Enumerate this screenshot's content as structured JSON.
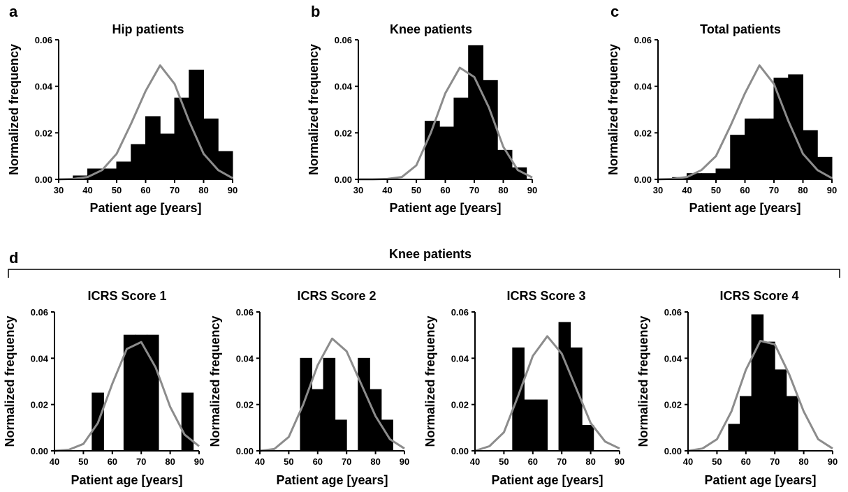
{
  "figure": {
    "group_label": "Knee patients",
    "group_letter": "d"
  },
  "chart_data": [
    {
      "id": "a",
      "letter": "a",
      "type": "bar",
      "title": "Hip patients",
      "xlabel": "Patient age [years]",
      "ylabel": "Normalized frequency",
      "xlim": [
        30,
        90
      ],
      "ylim": [
        0,
        0.06
      ],
      "xticks": [
        30,
        40,
        50,
        60,
        70,
        80,
        90
      ],
      "yticks": [
        "0.00",
        "0.02",
        "0.04",
        "0.06"
      ],
      "bin_width": 5,
      "bins": [
        {
          "start": 35,
          "value": 0.0015
        },
        {
          "start": 40,
          "value": 0.0045
        },
        {
          "start": 45,
          "value": 0.0045
        },
        {
          "start": 50,
          "value": 0.0075
        },
        {
          "start": 55,
          "value": 0.015
        },
        {
          "start": 60,
          "value": 0.027
        },
        {
          "start": 65,
          "value": 0.0195
        },
        {
          "start": 70,
          "value": 0.035
        },
        {
          "start": 75,
          "value": 0.047
        },
        {
          "start": 80,
          "value": 0.026
        },
        {
          "start": 85,
          "value": 0.012
        }
      ],
      "curve": {
        "x": [
          30,
          35,
          40,
          45,
          50,
          55,
          60,
          65,
          70,
          75,
          80,
          85,
          90
        ],
        "y": [
          0.0,
          0.0002,
          0.001,
          0.004,
          0.011,
          0.024,
          0.038,
          0.049,
          0.041,
          0.025,
          0.011,
          0.004,
          0.0005
        ]
      }
    },
    {
      "id": "b",
      "letter": "b",
      "type": "bar",
      "title": "Knee patients",
      "xlabel": "Patient age [years]",
      "ylabel": "Normalized frequency",
      "xlim": [
        30,
        90
      ],
      "ylim": [
        0,
        0.06
      ],
      "xticks": [
        30,
        40,
        50,
        60,
        70,
        80,
        90
      ],
      "yticks": [
        "0.00",
        "0.02",
        "0.04",
        "0.06"
      ],
      "bin_width": 5,
      "bins": [
        {
          "start": 53,
          "value": 0.025
        },
        {
          "start": 58,
          "value": 0.0225
        },
        {
          "start": 63,
          "value": 0.035
        },
        {
          "start": 68,
          "value": 0.0575
        },
        {
          "start": 73,
          "value": 0.0425
        },
        {
          "start": 78,
          "value": 0.0125
        },
        {
          "start": 83,
          "value": 0.005
        }
      ],
      "curve": {
        "x": [
          30,
          35,
          40,
          45,
          50,
          55,
          60,
          65,
          70,
          75,
          80,
          85,
          90
        ],
        "y": [
          0.0,
          0.0,
          0.0002,
          0.001,
          0.006,
          0.02,
          0.037,
          0.048,
          0.044,
          0.031,
          0.014,
          0.004,
          0.0008
        ]
      }
    },
    {
      "id": "c",
      "letter": "c",
      "type": "bar",
      "title": "Total patients",
      "xlabel": "Patient age [years]",
      "ylabel": "Normalized frequency",
      "xlim": [
        30,
        90
      ],
      "ylim": [
        0,
        0.06
      ],
      "xticks": [
        30,
        40,
        50,
        60,
        70,
        80,
        90
      ],
      "yticks": [
        "0.00",
        "0.02",
        "0.04",
        "0.06"
      ],
      "bin_width": 5,
      "bins": [
        {
          "start": 35,
          "value": 0.0008
        },
        {
          "start": 40,
          "value": 0.0025
        },
        {
          "start": 45,
          "value": 0.0025
        },
        {
          "start": 50,
          "value": 0.0045
        },
        {
          "start": 55,
          "value": 0.019
        },
        {
          "start": 60,
          "value": 0.026
        },
        {
          "start": 65,
          "value": 0.026
        },
        {
          "start": 70,
          "value": 0.0435
        },
        {
          "start": 75,
          "value": 0.045
        },
        {
          "start": 80,
          "value": 0.021
        },
        {
          "start": 85,
          "value": 0.0095
        }
      ],
      "curve": {
        "x": [
          30,
          35,
          40,
          45,
          50,
          55,
          60,
          65,
          70,
          75,
          80,
          85,
          90
        ],
        "y": [
          0.0,
          0.0002,
          0.001,
          0.004,
          0.01,
          0.023,
          0.037,
          0.049,
          0.041,
          0.025,
          0.011,
          0.004,
          0.0005
        ]
      }
    },
    {
      "id": "d1",
      "letter": "",
      "type": "bar",
      "title": "ICRS Score 1",
      "xlabel": "Patient age [years]",
      "ylabel": "Normalized frequency",
      "xlim": [
        40,
        90
      ],
      "ylim": [
        0,
        0.06
      ],
      "xticks": [
        40,
        50,
        60,
        70,
        80,
        90
      ],
      "yticks": [
        "0.00",
        "0.02",
        "0.04",
        "0.06"
      ],
      "bin_width": 4,
      "bins": [
        {
          "start": 53,
          "value": 0.025
        },
        {
          "start": 64,
          "value": 0.05
        },
        {
          "start": 68,
          "value": 0.05
        },
        {
          "start": 72,
          "value": 0.05
        },
        {
          "start": 84,
          "value": 0.025
        }
      ],
      "curve": {
        "x": [
          40,
          45,
          50,
          55,
          60,
          65,
          70,
          75,
          80,
          85,
          90
        ],
        "y": [
          0.0,
          0.0005,
          0.003,
          0.012,
          0.029,
          0.044,
          0.047,
          0.036,
          0.019,
          0.007,
          0.002
        ]
      }
    },
    {
      "id": "d2",
      "letter": "",
      "type": "bar",
      "title": "ICRS Score 2",
      "xlabel": "Patient age [years]",
      "ylabel": "Normalized frequency",
      "xlim": [
        40,
        90
      ],
      "ylim": [
        0,
        0.06
      ],
      "xticks": [
        40,
        50,
        60,
        70,
        80,
        90
      ],
      "yticks": [
        "0.00",
        "0.02",
        "0.04",
        "0.06"
      ],
      "bin_width": 4,
      "bins": [
        {
          "start": 54,
          "value": 0.04
        },
        {
          "start": 58,
          "value": 0.0265
        },
        {
          "start": 62,
          "value": 0.04
        },
        {
          "start": 66,
          "value": 0.0133
        },
        {
          "start": 74,
          "value": 0.04
        },
        {
          "start": 78,
          "value": 0.0265
        },
        {
          "start": 82,
          "value": 0.0133
        }
      ],
      "curve": {
        "x": [
          40,
          45,
          50,
          55,
          60,
          65,
          70,
          75,
          80,
          85,
          90
        ],
        "y": [
          0.0,
          0.0008,
          0.006,
          0.02,
          0.037,
          0.0485,
          0.043,
          0.029,
          0.015,
          0.005,
          0.001
        ]
      }
    },
    {
      "id": "d3",
      "letter": "",
      "type": "bar",
      "title": "ICRS Score 3",
      "xlabel": "Patient age [years]",
      "ylabel": "Normalized frequency",
      "xlim": [
        40,
        90
      ],
      "ylim": [
        0,
        0.06
      ],
      "xticks": [
        40,
        50,
        60,
        70,
        80,
        90
      ],
      "yticks": [
        "0.00",
        "0.02",
        "0.04",
        "0.06"
      ],
      "bin_width": 4,
      "bins": [
        {
          "start": 53,
          "value": 0.0445
        },
        {
          "start": 57,
          "value": 0.022
        },
        {
          "start": 61,
          "value": 0.022
        },
        {
          "start": 69,
          "value": 0.0555
        },
        {
          "start": 73,
          "value": 0.0445
        },
        {
          "start": 77,
          "value": 0.011
        }
      ],
      "curve": {
        "x": [
          40,
          45,
          50,
          55,
          60,
          65,
          70,
          75,
          80,
          85,
          90
        ],
        "y": [
          0.0,
          0.002,
          0.008,
          0.024,
          0.041,
          0.0495,
          0.042,
          0.027,
          0.012,
          0.004,
          0.001
        ]
      }
    },
    {
      "id": "d4",
      "letter": "",
      "type": "bar",
      "title": "ICRS Score 4",
      "xlabel": "Patient age [years]",
      "ylabel": "Normalized frequency",
      "xlim": [
        40,
        90
      ],
      "ylim": [
        0,
        0.06
      ],
      "xticks": [
        40,
        50,
        60,
        70,
        80,
        90
      ],
      "yticks": [
        "0.00",
        "0.02",
        "0.04",
        "0.06"
      ],
      "bin_width": 4,
      "bins": [
        {
          "start": 54,
          "value": 0.0115
        },
        {
          "start": 58,
          "value": 0.0235
        },
        {
          "start": 62,
          "value": 0.0588
        },
        {
          "start": 66,
          "value": 0.047
        },
        {
          "start": 70,
          "value": 0.035
        },
        {
          "start": 74,
          "value": 0.0235
        }
      ],
      "curve": {
        "x": [
          40,
          45,
          50,
          55,
          60,
          65,
          70,
          75,
          80,
          85,
          90
        ],
        "y": [
          0.0,
          0.001,
          0.005,
          0.017,
          0.035,
          0.0475,
          0.046,
          0.033,
          0.017,
          0.005,
          0.001
        ]
      }
    }
  ]
}
